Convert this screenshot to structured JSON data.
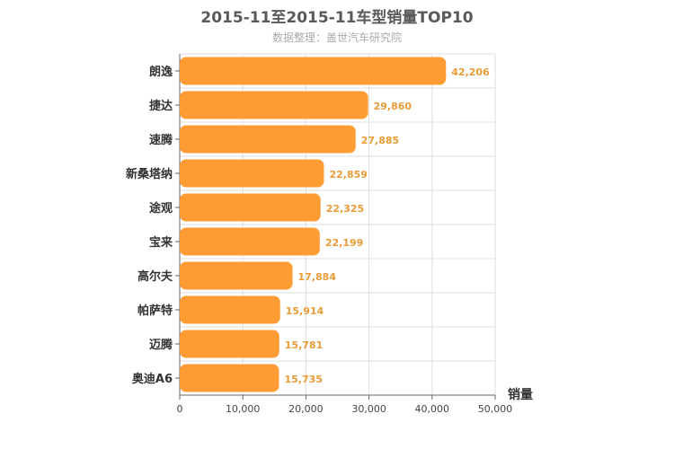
{
  "chart_data": {
    "type": "bar",
    "orientation": "horizontal",
    "title": "2015-11至2015-11车型销量TOP10",
    "subtitle": "数据整理：盖世汽车研究院",
    "xlabel": "销量",
    "ylabel": "",
    "xlim": [
      0,
      50000
    ],
    "x_ticks": [
      "0",
      "10,000",
      "20,000",
      "30,000",
      "40,000",
      "50,000"
    ],
    "grid": true,
    "bar_color": "#ff9c33",
    "categories": [
      "朗逸",
      "捷达",
      "速腾",
      "新桑塔纳",
      "途观",
      "宝来",
      "高尔夫",
      "帕萨特",
      "迈腾",
      "奥迪A6"
    ],
    "values": [
      42206,
      29860,
      27885,
      22859,
      22325,
      22199,
      17884,
      15914,
      15781,
      15735
    ],
    "value_labels": [
      "42,206",
      "29,860",
      "27,885",
      "22,859",
      "22,325",
      "22,199",
      "17,884",
      "15,914",
      "15,781",
      "15,735"
    ]
  }
}
